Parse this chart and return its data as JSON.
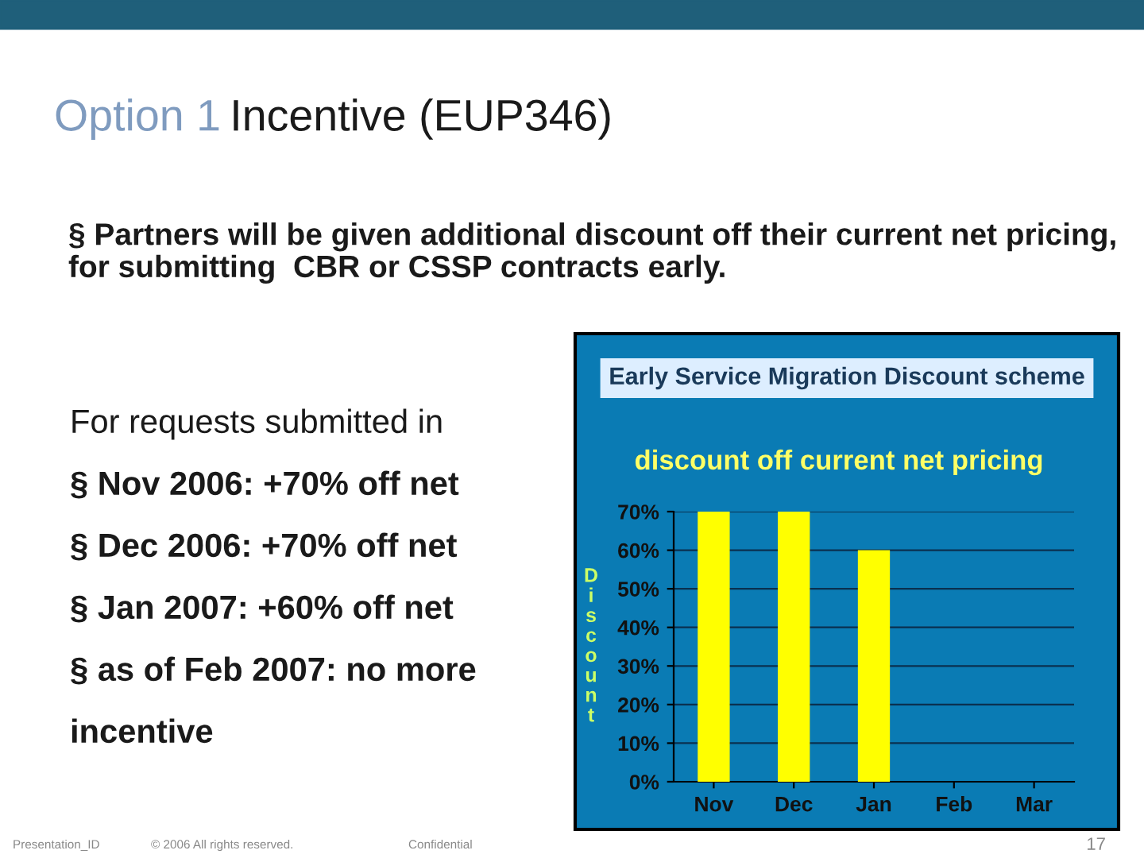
{
  "chart_data": {
    "type": "bar",
    "title": "Early Service Migration Discount scheme",
    "subtitle": "discount off current net pricing",
    "ylabel": "Discount",
    "categories": [
      "Nov",
      "Dec",
      "Jan",
      "Feb",
      "Mar"
    ],
    "values": [
      70,
      70,
      60,
      0,
      0
    ],
    "color": "#ffff00",
    "ylim": [
      0,
      70
    ],
    "yticks": [
      {
        "value": 0,
        "label": "0%"
      },
      {
        "value": 10,
        "label": "10%"
      },
      {
        "value": 20,
        "label": "20%"
      },
      {
        "value": 30,
        "label": "30%"
      },
      {
        "value": 40,
        "label": "40%"
      },
      {
        "value": 50,
        "label": "50%"
      },
      {
        "value": 60,
        "label": "60%"
      },
      {
        "value": 70,
        "label": "70%"
      }
    ],
    "grid": "y",
    "legend": false,
    "annotations": [
      "Option 1",
      "Incentive (EUP346)",
      "§ Partners will be given additional discount off their current net pricing, for submitting  CBR or CSSP contracts early.",
      "For requests submitted in",
      "§ Nov 2006: +70% off net",
      "§ Dec 2006: +70% off net",
      "§ Jan 2007: +60% off net",
      "§ as of Feb 2007: no more",
      "incentive",
      "Presentation_ID",
      "© 2006 All rights reserved.",
      "Confidential",
      "17"
    ]
  }
}
